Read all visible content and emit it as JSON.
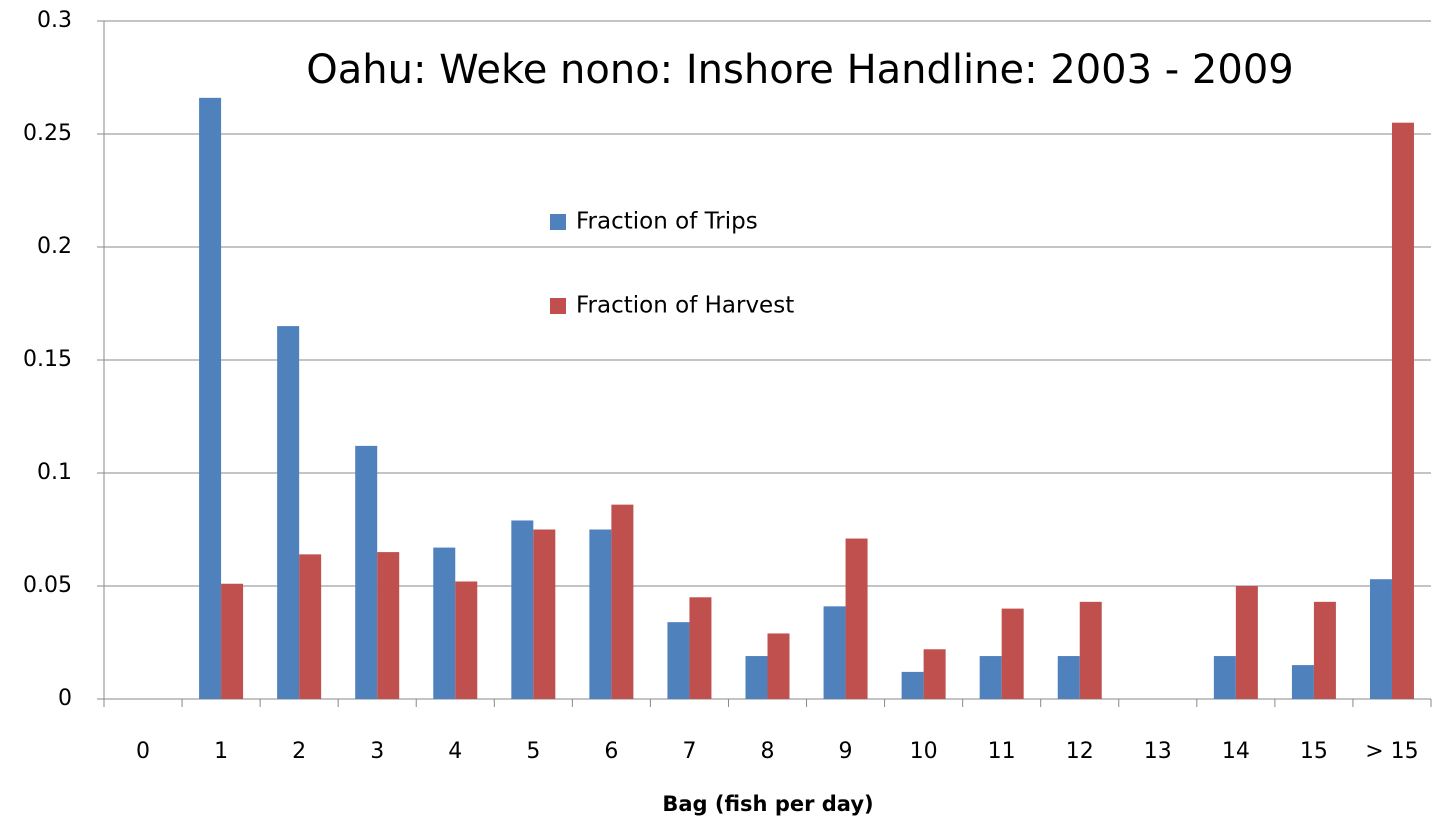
{
  "chart_data": {
    "type": "bar",
    "title": "Oahu: Weke nono: Inshore Handline: 2003 - 2009",
    "x_label": "Bag (fish per day)",
    "categories": [
      "0",
      "1",
      "2",
      "3",
      "4",
      "5",
      "6",
      "7",
      "8",
      "9",
      "10",
      "11",
      "12",
      "13",
      "14",
      "15",
      "> 15"
    ],
    "series": [
      {
        "name": "Fraction of Trips",
        "color": "#4f81bd",
        "values": [
          0,
          0.266,
          0.165,
          0.112,
          0.067,
          0.079,
          0.075,
          0.034,
          0.019,
          0.041,
          0.012,
          0.019,
          0.019,
          0,
          0.019,
          0.015,
          0.053
        ]
      },
      {
        "name": "Fraction of Harvest",
        "color": "#c0504d",
        "values": [
          0,
          0.051,
          0.064,
          0.065,
          0.052,
          0.075,
          0.086,
          0.045,
          0.029,
          0.071,
          0.022,
          0.04,
          0.043,
          0,
          0.05,
          0.043,
          0.255
        ]
      }
    ],
    "ylim": [
      0,
      0.3
    ],
    "yticks": [
      0,
      0.05,
      0.1,
      0.15,
      0.2,
      0.25,
      0.3
    ],
    "grid": true
  }
}
